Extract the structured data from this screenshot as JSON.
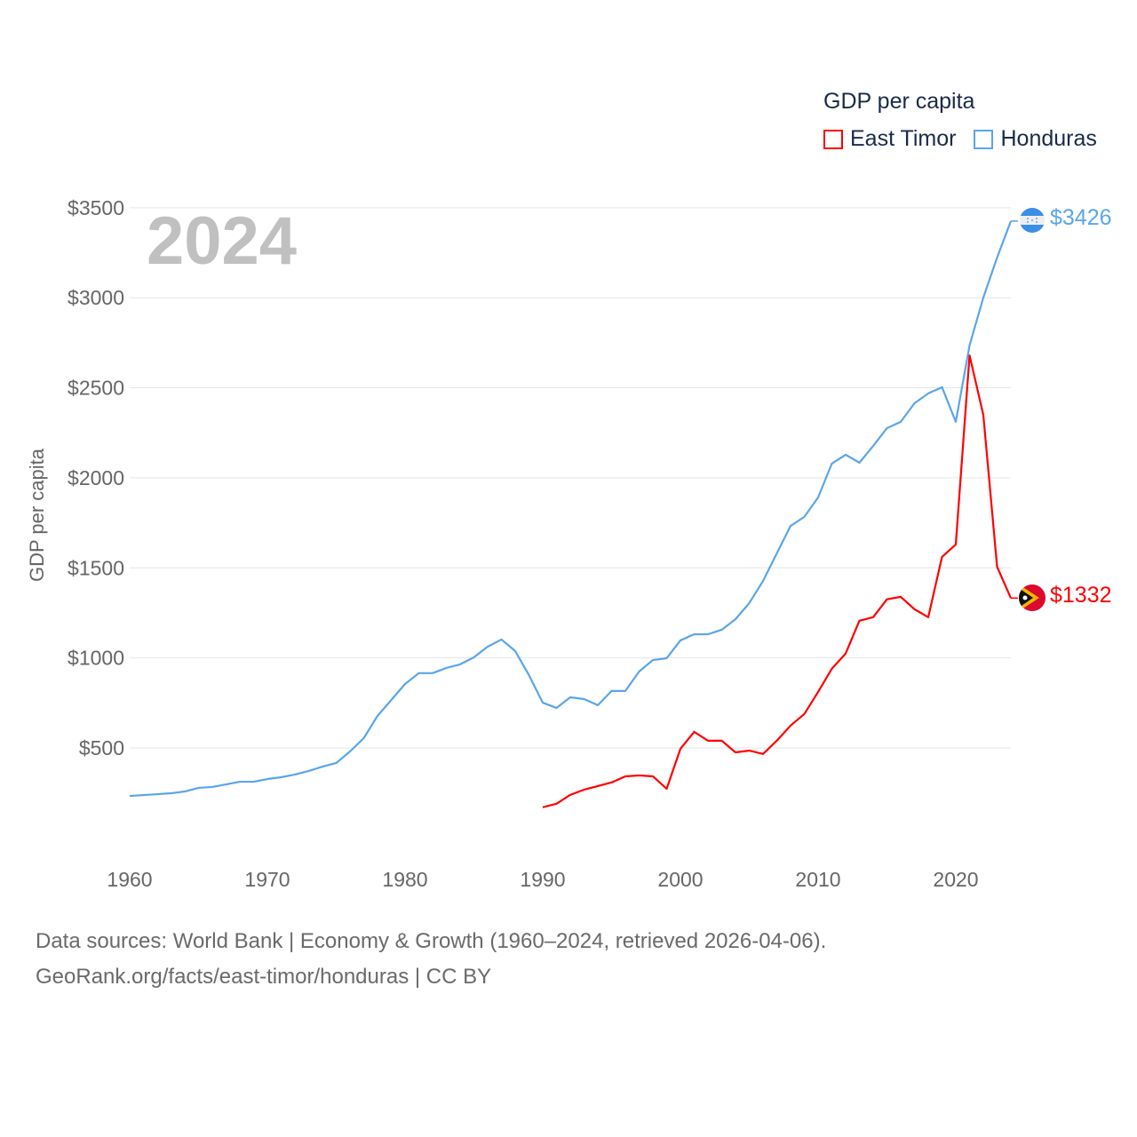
{
  "chart_data": {
    "type": "line",
    "title": "",
    "legend_title": "GDP per capita",
    "legend_position": "top-right",
    "ylabel": "GDP per capita",
    "xlabel": "",
    "year_label": "2024",
    "xlim": [
      1960,
      2024
    ],
    "ylim": [
      0,
      3500
    ],
    "x_ticks": [
      1960,
      1970,
      1980,
      1990,
      2000,
      2010,
      2020
    ],
    "y_ticks": [
      500,
      1000,
      1500,
      2000,
      2500,
      3000,
      3500
    ],
    "y_tick_labels": [
      "$500",
      "$1000",
      "$1500",
      "$2000",
      "$2500",
      "$3000",
      "$3500"
    ],
    "grid": true,
    "series": [
      {
        "name": "East Timor",
        "color": "#ff0000",
        "start_year": 1990,
        "end_label": "$1332",
        "flag": "east-timor-flag",
        "values": [
          170,
          190,
          239,
          268,
          288,
          308,
          342,
          347,
          342,
          273,
          495,
          589,
          540,
          540,
          475,
          485,
          466,
          540,
          624,
          688,
          811,
          940,
          1024,
          1206,
          1226,
          1325,
          1339,
          1270,
          1226,
          1561,
          1630,
          2680,
          2349,
          1506,
          1332
        ]
      },
      {
        "name": "Honduras",
        "color": "#5aa5ea",
        "start_year": 1960,
        "end_label": "$3426",
        "flag": "honduras-flag",
        "values": [
          233,
          238,
          243,
          248,
          258,
          278,
          283,
          297,
          312,
          312,
          327,
          337,
          352,
          372,
          396,
          416,
          480,
          554,
          678,
          766,
          855,
          915,
          915,
          944,
          964,
          1003,
          1062,
          1102,
          1038,
          904,
          751,
          722,
          781,
          771,
          737,
          816,
          816,
          924,
          988,
          998,
          1097,
          1131,
          1131,
          1156,
          1215,
          1304,
          1427,
          1580,
          1733,
          1783,
          1891,
          2079,
          2128,
          2084,
          2177,
          2276,
          2311,
          2414,
          2469,
          2503,
          2311,
          2735,
          3001,
          3223,
          3426
        ]
      }
    ]
  },
  "footer": {
    "line1": "Data sources: World Bank | Economy & Growth (1960–2024, retrieved 2026-04-06).",
    "line2": "GeoRank.org/facts/east-timor/honduras | CC BY"
  }
}
